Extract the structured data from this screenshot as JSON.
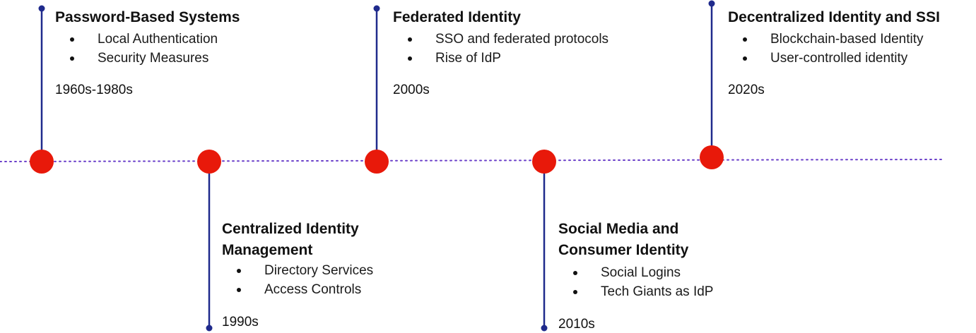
{
  "colors": {
    "line": "#1f2a8c",
    "dot": "#e8190a",
    "axis": "#6a3fc9"
  },
  "events": [
    {
      "title_lines": [
        "Password-Based Systems"
      ],
      "items": [
        "Local Authentication",
        "Security Measures"
      ],
      "era": "1960s-1980s"
    },
    {
      "title_lines": [
        "Centralized Identity",
        "Management"
      ],
      "items": [
        "Directory Services",
        "Access Controls"
      ],
      "era": "1990s"
    },
    {
      "title_lines": [
        "Federated Identity"
      ],
      "items": [
        "SSO and federated protocols",
        "Rise of IdP"
      ],
      "era": "2000s"
    },
    {
      "title_lines": [
        "Social Media and",
        "Consumer Identity"
      ],
      "items": [
        "Social Logins",
        "Tech Giants as IdP"
      ],
      "era": "2010s"
    },
    {
      "title_lines": [
        "Decentralized Identity and SSI"
      ],
      "items": [
        "Blockchain-based Identity",
        "User-controlled identity"
      ],
      "era": "2020s"
    }
  ]
}
